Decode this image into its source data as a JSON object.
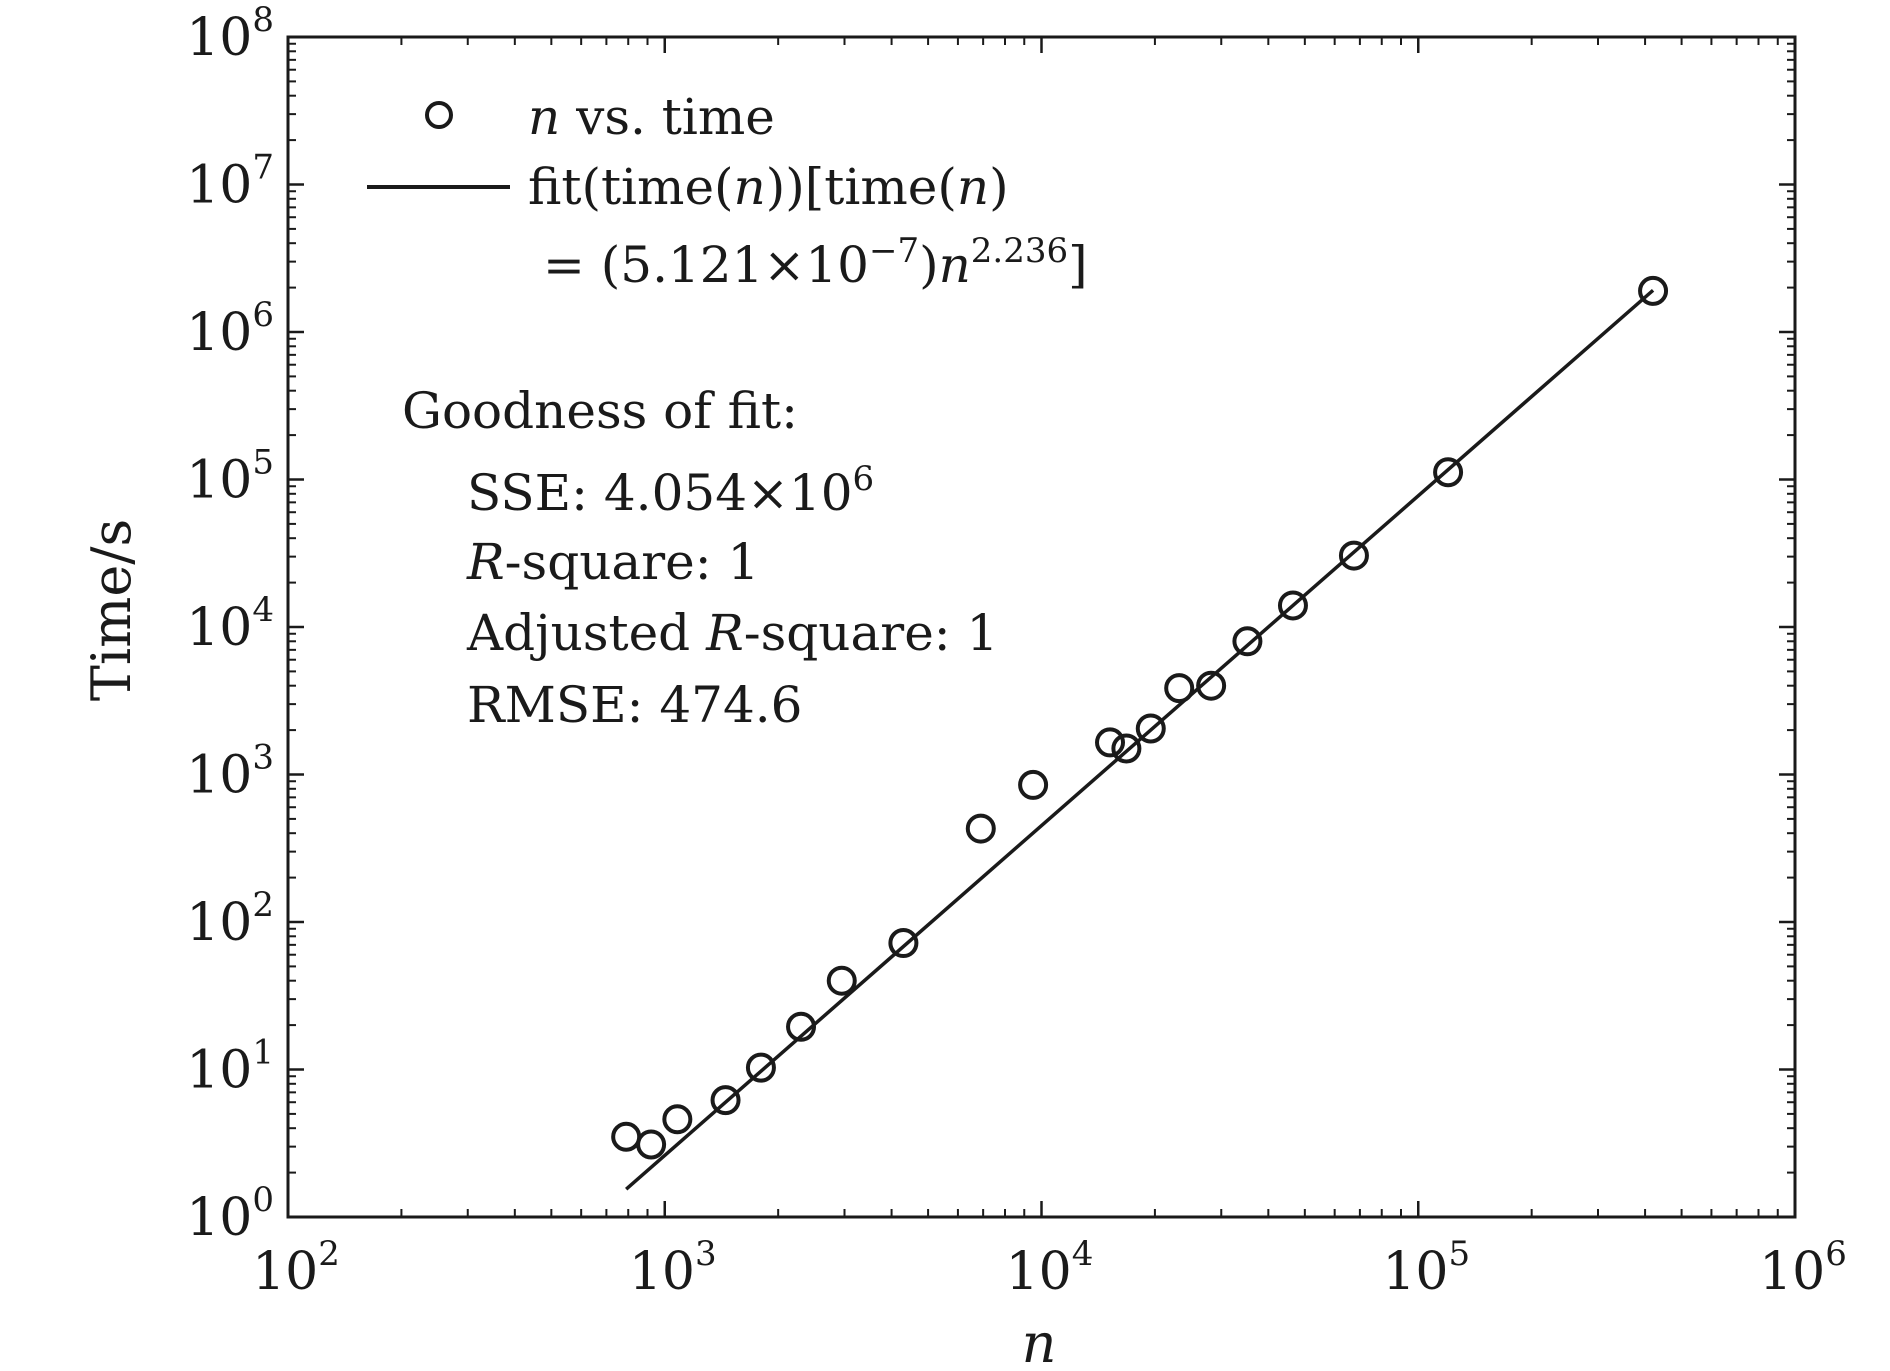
{
  "chart_data": {
    "type": "scatter",
    "xscale": "log",
    "yscale": "log",
    "xlim": [
      100,
      1000000
    ],
    "ylim": [
      1,
      100000000
    ],
    "xlabel": "n",
    "ylabel": "Time/s",
    "grid": false,
    "legend_position": "top-left",
    "x_ticks": [
      {
        "value": 100,
        "base": "10",
        "exp": "2"
      },
      {
        "value": 1000,
        "base": "10",
        "exp": "3"
      },
      {
        "value": 10000,
        "base": "10",
        "exp": "4"
      },
      {
        "value": 100000,
        "base": "10",
        "exp": "5"
      },
      {
        "value": 1000000,
        "base": "10",
        "exp": "6"
      }
    ],
    "y_ticks": [
      {
        "value": 1,
        "base": "10",
        "exp": "0"
      },
      {
        "value": 10,
        "base": "10",
        "exp": "1"
      },
      {
        "value": 100,
        "base": "10",
        "exp": "2"
      },
      {
        "value": 1000,
        "base": "10",
        "exp": "3"
      },
      {
        "value": 10000,
        "base": "10",
        "exp": "4"
      },
      {
        "value": 100000,
        "base": "10",
        "exp": "5"
      },
      {
        "value": 1000000,
        "base": "10",
        "exp": "6"
      },
      {
        "value": 10000000,
        "base": "10",
        "exp": "7"
      },
      {
        "value": 100000000,
        "base": "10",
        "exp": "8"
      }
    ],
    "series": [
      {
        "name": "n vs. time",
        "kind": "scatter",
        "marker": "circle",
        "points": [
          [
            790,
            3.5
          ],
          [
            920,
            3.1
          ],
          [
            1080,
            4.6
          ],
          [
            1450,
            6.2
          ],
          [
            1800,
            10.3
          ],
          [
            2300,
            19.5
          ],
          [
            2950,
            40
          ],
          [
            4300,
            72
          ],
          [
            6900,
            430
          ],
          [
            9500,
            850
          ],
          [
            15200,
            1650
          ],
          [
            16800,
            1500
          ],
          [
            19500,
            2050
          ],
          [
            23200,
            3850
          ],
          [
            28200,
            4000
          ],
          [
            35200,
            8000
          ],
          [
            46500,
            14000
          ],
          [
            67500,
            30500
          ],
          [
            120000,
            112000
          ],
          [
            420000,
            1900000
          ]
        ]
      },
      {
        "name": "fit(time(n))[time(n) = (5.121×10⁻⁷)n^2.236]",
        "kind": "line",
        "coefficient": 5.121e-07,
        "exponent": 2.236,
        "x_range": [
          790,
          420000
        ]
      }
    ],
    "legend": {
      "entry1": {
        "var": "n",
        "rest": " vs. time"
      },
      "entry2": {
        "line1_a": "fit(time(",
        "line1_var": "n",
        "line1_b": "))[time(",
        "line1_var2": "n",
        "line1_c": ")",
        "line2_a": "= (5.121×10",
        "line2_sup": "−7",
        "line2_b": ")",
        "line2_var": "n",
        "line2_sup2": "2.236",
        "line2_c": "]"
      }
    },
    "goodness_of_fit": {
      "heading": "Goodness of fit:",
      "sse_label": "SSE: 4.054×10",
      "sse_exp": "6",
      "rsq_var": "R",
      "rsq_rest": "-square: 1",
      "adj_a": "Adjusted ",
      "adj_var": "R",
      "adj_rest": "-square: 1",
      "rmse": "RMSE: 474.6"
    },
    "colors": {
      "ink": "#1a1a1a",
      "background": "#ffffff"
    }
  }
}
